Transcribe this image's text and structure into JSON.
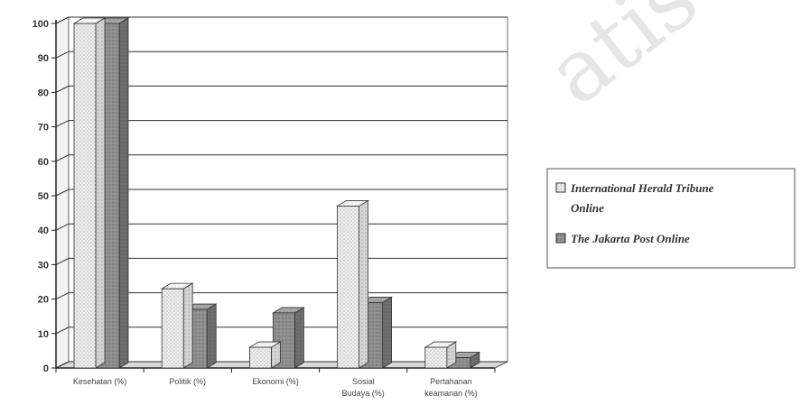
{
  "chart_data": {
    "type": "bar",
    "title": "",
    "xlabel": "",
    "ylabel": "",
    "ylim": [
      0,
      100
    ],
    "yticks": [
      0,
      10,
      20,
      30,
      40,
      50,
      60,
      70,
      80,
      90,
      100
    ],
    "categories": [
      [
        "Kesehatan (%)"
      ],
      [
        "Politik (%)"
      ],
      [
        "Ekonomi (%)"
      ],
      [
        "Sosial",
        "Budaya (%)"
      ],
      [
        "Pertahanan",
        "keamanan (%)"
      ]
    ],
    "series": [
      {
        "name": "International Herald Tribune Online",
        "legend_lines": [
          "International Herald Tribune",
          "Online"
        ],
        "values": [
          100,
          23,
          6,
          47,
          6
        ],
        "color": "#ececec",
        "pattern": "dotted"
      },
      {
        "name": "The Jakarta Post Online",
        "legend_lines": [
          "The Jakarta Post Online"
        ],
        "values": [
          100,
          17,
          16,
          19,
          3
        ],
        "color": "#8c8c8c",
        "pattern": "speckled"
      }
    ],
    "grid": true,
    "legend_position": "right",
    "style": "3d-bar"
  },
  "watermark": {
    "text": "atis"
  }
}
